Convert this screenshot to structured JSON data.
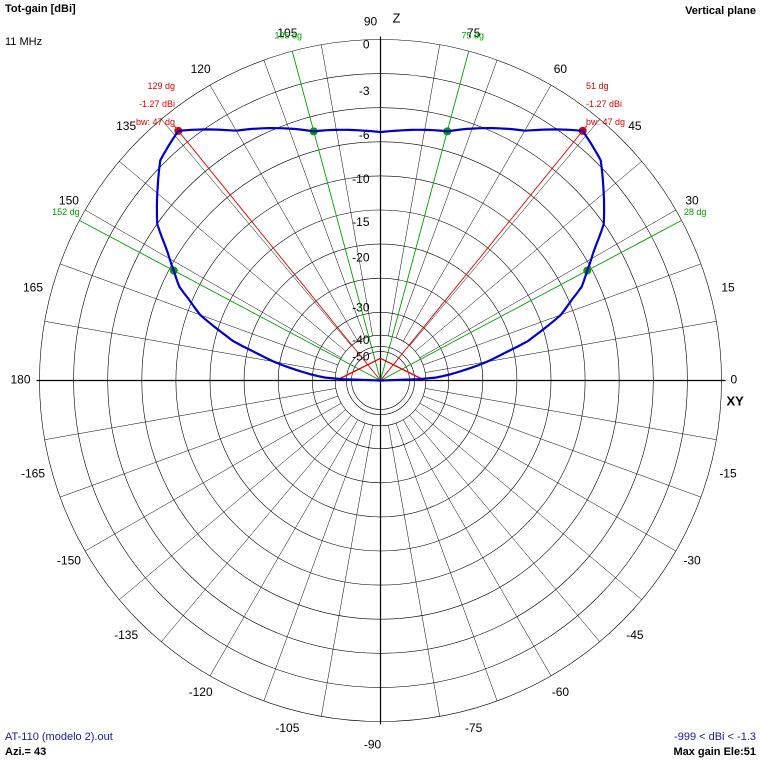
{
  "header": {
    "title": "Tot-gain [dBi]",
    "frequency": "11 MHz",
    "plane": "Vertical plane"
  },
  "footer": {
    "file": "AT-110 (modelo 2).out",
    "azimuth": "Azi.= 43",
    "range": "-999 < dBi < -1.3",
    "max_gain": "Max gain Ele:51"
  },
  "colors": {
    "pattern": "#0000cc",
    "beamwidth": "#e00000",
    "marker_3db": "#00a000",
    "grid": "#000000"
  },
  "chart_data": {
    "type": "polar",
    "axis_labels": {
      "z": "Z",
      "xy": "XY"
    },
    "angle_tick_labels": [
      "0",
      "15",
      "30",
      "45",
      "60",
      "75",
      "90",
      "105",
      "120",
      "135",
      "150",
      "165",
      "180",
      "-165",
      "-150",
      "-135",
      "-120",
      "-105",
      "-90",
      "-75",
      "-60",
      "-45",
      "-30",
      "-15"
    ],
    "radial_tick_labels": [
      "0",
      "-3",
      "-6",
      "-10",
      "-15",
      "-20",
      "-30",
      "-40",
      "-50"
    ],
    "grid": true,
    "series": [
      {
        "elevation_deg": [
          0,
          3,
          6,
          10,
          15,
          20,
          25,
          28,
          35,
          45,
          51,
          60,
          75,
          90,
          105,
          120,
          129,
          135,
          145,
          152,
          155,
          160,
          165,
          170,
          174,
          177,
          180
        ],
        "gain_dbi": [
          -999,
          -37,
          -30.5,
          -24,
          -16.5,
          -11.7,
          -8.6,
          -7.5,
          -4.5,
          -1.9,
          -1.27,
          -3.4,
          -5.5,
          -6.2,
          -5.5,
          -3.4,
          -1.27,
          -1.9,
          -4.5,
          -7.5,
          -8.6,
          -11.7,
          -16.5,
          -24,
          -30.5,
          -37,
          -999
        ]
      }
    ],
    "beamwidth_markers": [
      {
        "angle_deg": 51,
        "labels": [
          "51 dg",
          "-1.27 dBi",
          "bw: 47 dg"
        ]
      },
      {
        "angle_deg": 129,
        "labels": [
          "129 dg",
          "-1.27 dBi",
          "bw: 47 dg"
        ]
      }
    ],
    "three_db_markers": [
      {
        "angle_deg": 28,
        "label": "28 dg"
      },
      {
        "angle_deg": 75,
        "label": "75 dg"
      },
      {
        "angle_deg": 105,
        "label": "105 dg"
      },
      {
        "angle_deg": 152,
        "label": "152 dg"
      }
    ]
  }
}
